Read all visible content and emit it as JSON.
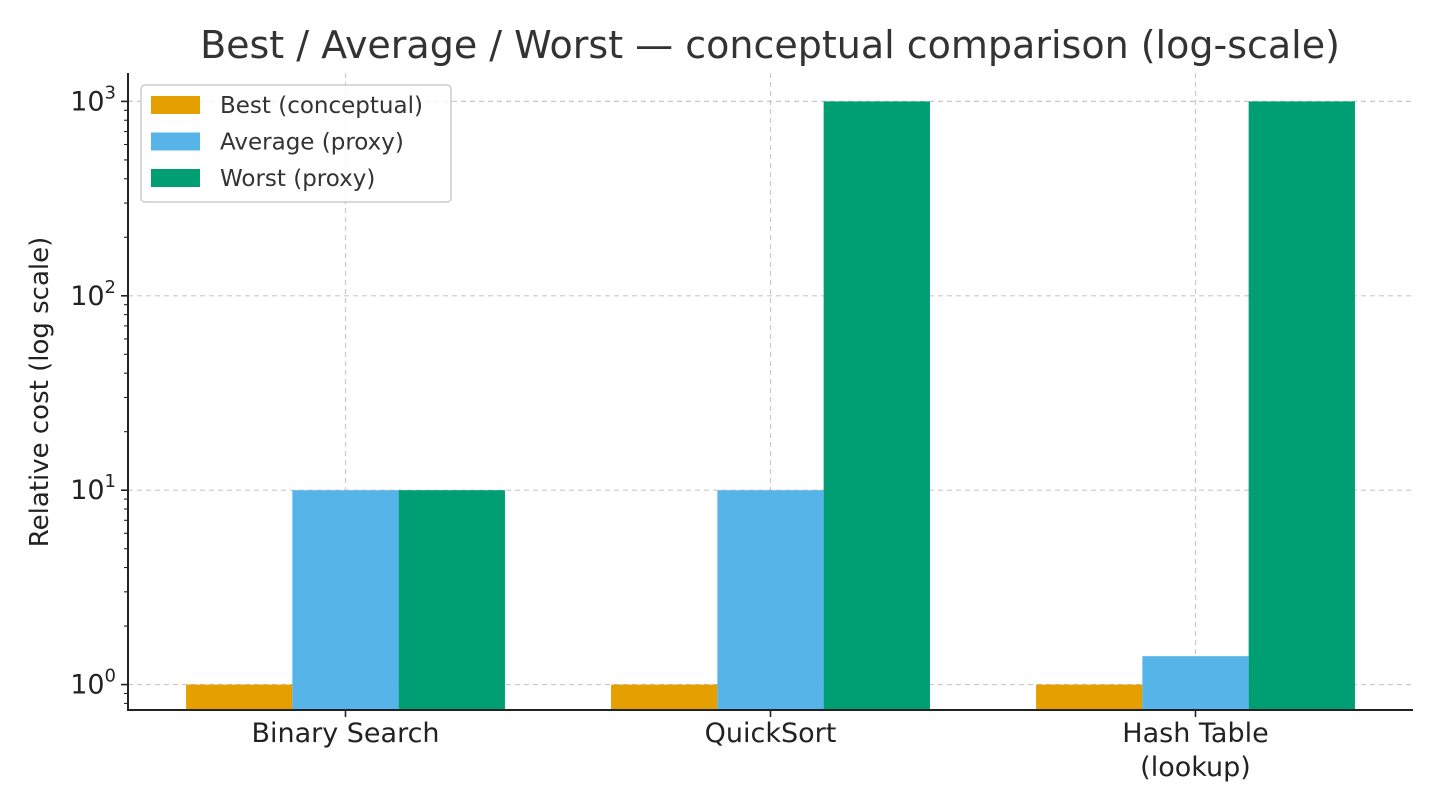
{
  "chart_data": {
    "type": "bar",
    "title": "Best / Average / Worst — conceptual comparison (log-scale)",
    "ylabel": "Relative cost (log scale)",
    "xlabel": "",
    "yscale": "log",
    "ylim": [
      0.74,
      1400
    ],
    "grid": true,
    "legend_position": "top-left",
    "categories": [
      [
        "Binary Search"
      ],
      [
        "QuickSort"
      ],
      [
        "Hash Table",
        "(lookup)"
      ]
    ],
    "y_ticks": [
      {
        "value": 1,
        "base": "10",
        "exp": "0"
      },
      {
        "value": 10,
        "base": "10",
        "exp": "1"
      },
      {
        "value": 100,
        "base": "10",
        "exp": "2"
      },
      {
        "value": 1000,
        "base": "10",
        "exp": "3"
      }
    ],
    "series": [
      {
        "name": "Best (conceptual)",
        "color": "#E69F00",
        "values": [
          1,
          1,
          1
        ]
      },
      {
        "name": "Average (proxy)",
        "color": "#56B4E9",
        "values": [
          10,
          10,
          1.4
        ]
      },
      {
        "name": "Worst (proxy)",
        "color": "#009E73",
        "values": [
          10,
          1000,
          1000
        ]
      }
    ]
  }
}
